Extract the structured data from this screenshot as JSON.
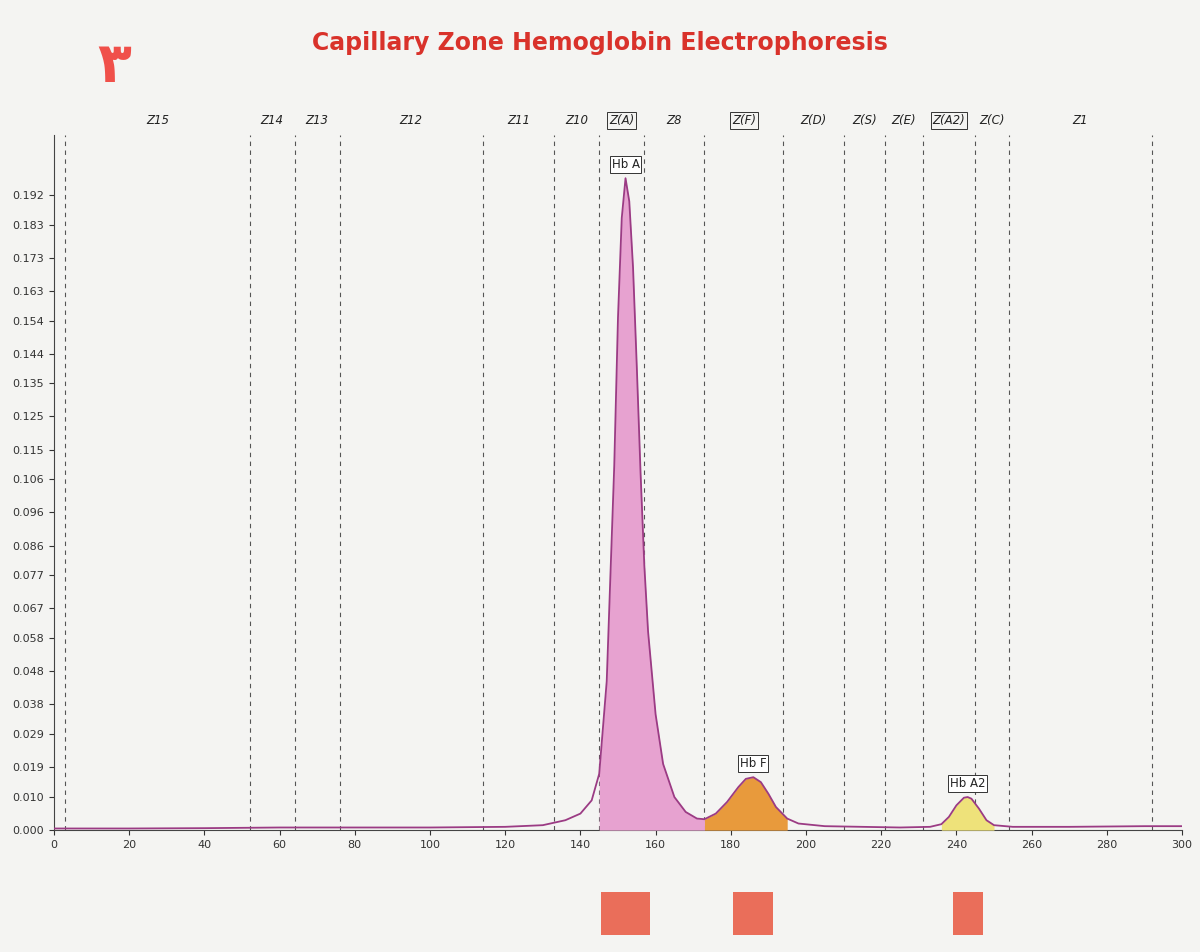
{
  "page_mark": "٣",
  "chart_data": {
    "type": "line",
    "title": "Capillary Zone Hemoglobin Electrophoresis",
    "color": "#9b3b84",
    "x": [
      0,
      10,
      20,
      40,
      60,
      80,
      100,
      120,
      130,
      136,
      140,
      143,
      145,
      147,
      149,
      150,
      151,
      152,
      153,
      154,
      155,
      156,
      157,
      158,
      160,
      162,
      165,
      168,
      171,
      173,
      176,
      179,
      182,
      184,
      186,
      188,
      190,
      192,
      195,
      198,
      205,
      215,
      225,
      233,
      236,
      238,
      240,
      242,
      243,
      244,
      246,
      248,
      250,
      255,
      270,
      290,
      300
    ],
    "values": [
      0.0005,
      0.0005,
      0.0005,
      0.0006,
      0.0008,
      0.0008,
      0.0008,
      0.001,
      0.0015,
      0.003,
      0.005,
      0.009,
      0.017,
      0.045,
      0.11,
      0.155,
      0.185,
      0.197,
      0.19,
      0.17,
      0.14,
      0.108,
      0.08,
      0.06,
      0.035,
      0.02,
      0.01,
      0.0055,
      0.0035,
      0.0033,
      0.005,
      0.0085,
      0.013,
      0.0155,
      0.016,
      0.0145,
      0.011,
      0.007,
      0.0035,
      0.002,
      0.0012,
      0.001,
      0.0008,
      0.001,
      0.0018,
      0.004,
      0.0075,
      0.0098,
      0.01,
      0.0095,
      0.0065,
      0.003,
      0.0015,
      0.001,
      0.001,
      0.0012,
      0.0012
    ],
    "xlim": [
      0,
      300
    ],
    "ylim": [
      0,
      0.21
    ],
    "xticks": [
      0,
      20,
      40,
      60,
      80,
      100,
      120,
      140,
      160,
      180,
      200,
      220,
      240,
      260,
      280,
      300
    ],
    "yticks": [
      {
        "value": 0.0,
        "label": "0.000"
      },
      {
        "value": 0.01,
        "label": "0.010"
      },
      {
        "value": 0.019,
        "label": "0.019"
      },
      {
        "value": 0.029,
        "label": "0.029"
      },
      {
        "value": 0.038,
        "label": "0.038"
      },
      {
        "value": 0.048,
        "label": "0.048"
      },
      {
        "value": 0.058,
        "label": "0.058"
      },
      {
        "value": 0.067,
        "label": "0.067"
      },
      {
        "value": 0.077,
        "label": "0.077"
      },
      {
        "value": 0.086,
        "label": "0.086"
      },
      {
        "value": 0.096,
        "label": "0.096"
      },
      {
        "value": 0.106,
        "label": "0.106"
      },
      {
        "value": 0.115,
        "label": "0.115"
      },
      {
        "value": 0.125,
        "label": "0.125"
      },
      {
        "value": 0.135,
        "label": "0.135"
      },
      {
        "value": 0.144,
        "label": "0.144"
      },
      {
        "value": 0.154,
        "label": "0.154"
      },
      {
        "value": 0.163,
        "label": "0.163"
      },
      {
        "value": 0.173,
        "label": "0.173"
      },
      {
        "value": 0.183,
        "label": "0.183"
      },
      {
        "value": 0.192,
        "label": "0.192"
      }
    ],
    "zones": [
      {
        "name": "Z15",
        "range": [
          3,
          52
        ]
      },
      {
        "name": "Z14",
        "range": [
          52,
          64
        ]
      },
      {
        "name": "Z13",
        "range": [
          64,
          76
        ]
      },
      {
        "name": "Z12",
        "range": [
          76,
          114
        ]
      },
      {
        "name": "Z11",
        "range": [
          114,
          133
        ]
      },
      {
        "name": "Z10",
        "range": [
          133,
          145
        ]
      },
      {
        "name": "Z(A)",
        "range": [
          145,
          157
        ]
      },
      {
        "name": "Z8",
        "range": [
          157,
          173
        ]
      },
      {
        "name": "Z(F)",
        "range": [
          173,
          194
        ]
      },
      {
        "name": "Z(D)",
        "range": [
          194,
          210
        ]
      },
      {
        "name": "Z(S)",
        "range": [
          210,
          221
        ]
      },
      {
        "name": "Z(E)",
        "range": [
          221,
          231
        ]
      },
      {
        "name": "Z(A2)",
        "range": [
          231,
          245
        ]
      },
      {
        "name": "Z(C)",
        "range": [
          245,
          254
        ]
      },
      {
        "name": "Z1",
        "range": [
          254,
          292
        ]
      }
    ],
    "peaks": [
      {
        "name": "Hb A",
        "range": [
          145,
          173
        ],
        "color": "#e7a2d0"
      },
      {
        "name": "Hb F",
        "range": [
          173,
          195
        ],
        "color": "#e89a3c"
      },
      {
        "name": "Hb A2",
        "range": [
          236,
          250
        ],
        "color": "#eee27a"
      }
    ]
  }
}
